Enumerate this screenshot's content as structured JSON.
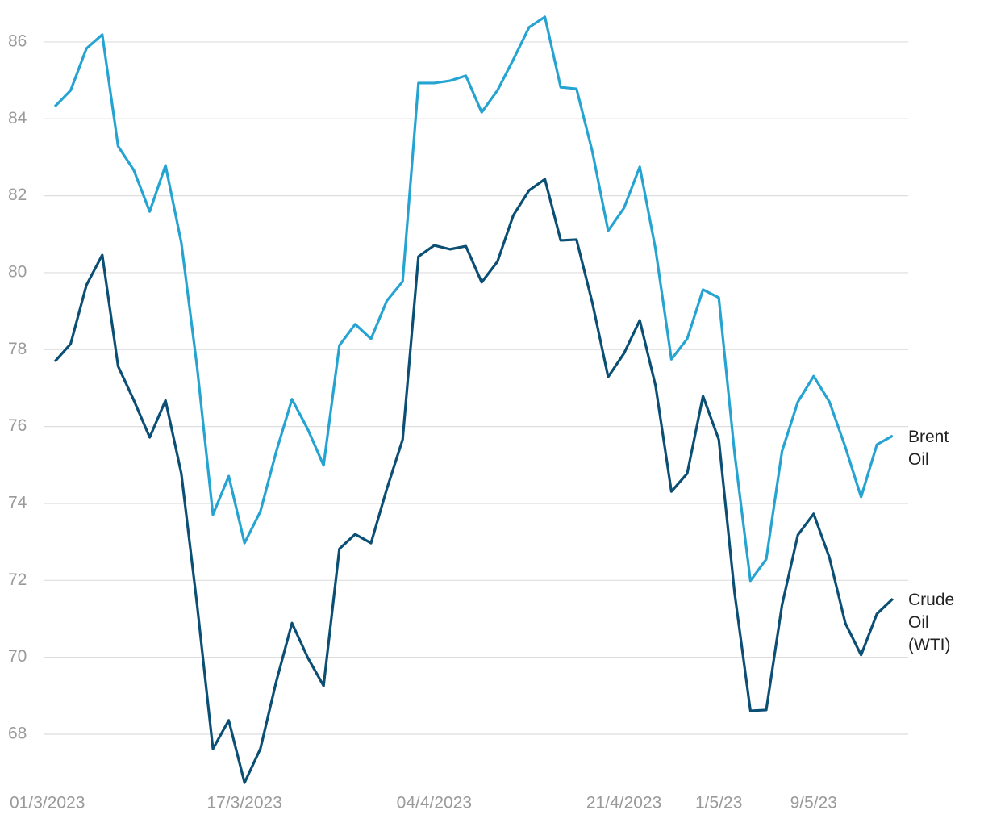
{
  "chart_data": {
    "type": "line",
    "categories": [
      "01/3/2023",
      null,
      null,
      null,
      null,
      null,
      null,
      null,
      null,
      null,
      null,
      null,
      "17/3/2023",
      null,
      null,
      null,
      null,
      null,
      null,
      null,
      null,
      null,
      null,
      null,
      "04/4/2023",
      null,
      null,
      null,
      null,
      null,
      null,
      null,
      null,
      null,
      null,
      null,
      "21/4/2023",
      null,
      null,
      null,
      null,
      null,
      "1/5/23",
      null,
      null,
      null,
      null,
      null,
      "9/5/23",
      null,
      null,
      null,
      null,
      null
    ],
    "series": [
      {
        "name": "Brent Oil",
        "color": "#25a3d1",
        "values": [
          84.32,
          84.74,
          85.83,
          86.19,
          83.29,
          82.66,
          81.59,
          82.79,
          80.78,
          77.54,
          73.71,
          74.71,
          72.97,
          73.79,
          75.34,
          76.71,
          75.93,
          74.99,
          78.11,
          78.66,
          78.28,
          79.27,
          79.77,
          84.93,
          84.93,
          84.99,
          85.12,
          84.17,
          84.74,
          85.54,
          86.38,
          86.65,
          84.82,
          84.78,
          83.15,
          81.09,
          81.68,
          82.75,
          80.61,
          77.75,
          78.28,
          79.56,
          79.35,
          75.3,
          71.99,
          72.55,
          75.36,
          76.64,
          77.31,
          76.64,
          75.47,
          74.17,
          75.53,
          75.76
        ]
      },
      {
        "name": "Crude Oil (WTI)",
        "color": "#0b4f74",
        "values": [
          77.69,
          78.15,
          79.68,
          80.46,
          77.57,
          76.68,
          75.72,
          76.68,
          74.78,
          71.36,
          67.62,
          68.36,
          66.74,
          67.62,
          69.36,
          70.89,
          69.99,
          69.26,
          72.82,
          73.2,
          72.97,
          74.38,
          75.66,
          80.42,
          80.71,
          80.61,
          80.69,
          79.75,
          80.29,
          81.49,
          82.14,
          82.43,
          80.84,
          80.86,
          79.22,
          77.29,
          77.9,
          78.76,
          77.06,
          74.31,
          74.78,
          76.79,
          75.66,
          71.67,
          68.61,
          68.63,
          71.36,
          73.18,
          73.73,
          72.59,
          70.89,
          70.06,
          71.13,
          71.52
        ]
      }
    ],
    "ylim": [
      66.5,
      86.8
    ],
    "yticks": [
      68,
      70,
      72,
      74,
      76,
      78,
      80,
      82,
      84,
      86
    ],
    "grid": true
  }
}
